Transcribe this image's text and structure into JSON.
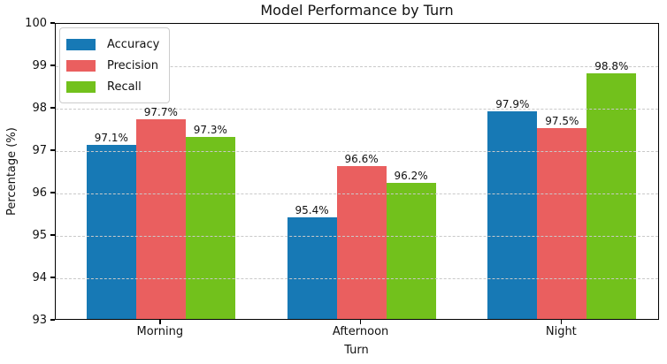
{
  "chart_data": {
    "type": "bar",
    "title": "Model Performance by Turn",
    "xlabel": "Turn",
    "ylabel": "Percentage (%)",
    "categories": [
      "Morning",
      "Afternoon",
      "Night"
    ],
    "series": [
      {
        "name": "Accuracy",
        "color": "#1779b5",
        "values": [
          97.1,
          95.4,
          97.9
        ],
        "labels": [
          "97.1%",
          "95.4%",
          "97.9%"
        ]
      },
      {
        "name": "Precision",
        "color": "#ea5f5f",
        "values": [
          97.7,
          96.6,
          97.5
        ],
        "labels": [
          "97.7%",
          "96.6%",
          "97.5%"
        ]
      },
      {
        "name": "Recall",
        "color": "#72c11c",
        "values": [
          97.3,
          96.2,
          98.8
        ],
        "labels": [
          "97.3%",
          "96.2%",
          "98.8%"
        ]
      }
    ],
    "ylim": [
      93,
      100
    ],
    "yticks": [
      "93",
      "94",
      "95",
      "96",
      "97",
      "98",
      "99",
      "100"
    ],
    "grid": {
      "axis": "y",
      "style": "dashed",
      "color": "#c9c9c9",
      "above_bars": true
    },
    "legend_position": "upper left",
    "axis_color": "#000000",
    "background": "#ffffff"
  }
}
